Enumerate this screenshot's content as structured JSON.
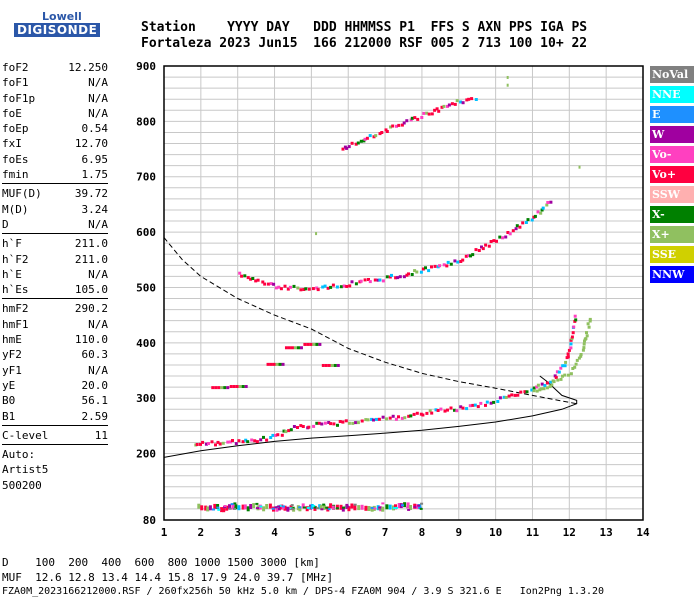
{
  "logo": {
    "line1": "Lowell",
    "line2": "DIGISONDE"
  },
  "header": {
    "labels": "Station    YYYY DAY   DDD HHMMSS P1  FFS S AXN PPS IGA PS",
    "values": "Fortaleza 2023 Jun15  166 212000 RSF 005 2 713 100 10+ 22"
  },
  "params": [
    {
      "k": "foF2",
      "v": "12.250"
    },
    {
      "k": "foF1",
      "v": "N/A"
    },
    {
      "k": "foF1p",
      "v": "N/A"
    },
    {
      "k": "foE",
      "v": "N/A"
    },
    {
      "k": "foEp",
      "v": "0.54"
    },
    {
      "k": "fxI",
      "v": "12.70"
    },
    {
      "k": "foEs",
      "v": "6.95"
    },
    {
      "k": "fmin",
      "v": "1.75"
    },
    {
      "sep": true
    },
    {
      "k": "MUF(D)",
      "v": "39.72"
    },
    {
      "k": "M(D)",
      "v": "3.24"
    },
    {
      "k": "D",
      "v": "N/A"
    },
    {
      "sep": true
    },
    {
      "k": "h`F",
      "v": "211.0"
    },
    {
      "k": "h`F2",
      "v": "211.0"
    },
    {
      "k": "h`E",
      "v": "N/A"
    },
    {
      "k": "h`Es",
      "v": "105.0"
    },
    {
      "sep": true
    },
    {
      "k": "hmF2",
      "v": "290.2"
    },
    {
      "k": "hmF1",
      "v": "N/A"
    },
    {
      "k": "hmE",
      "v": "110.0"
    },
    {
      "k": "yF2",
      "v": "60.3"
    },
    {
      "k": "yF1",
      "v": "N/A"
    },
    {
      "k": "yE",
      "v": "20.0"
    },
    {
      "k": "B0",
      "v": "56.1"
    },
    {
      "k": "B1",
      "v": "2.59"
    },
    {
      "sep": true
    },
    {
      "k": "C-level",
      "v": "11"
    },
    {
      "sep": true
    },
    {
      "k": "Auto:",
      "v": ""
    },
    {
      "k": "Artist5",
      "v": ""
    },
    {
      "k": "500200",
      "v": ""
    }
  ],
  "legend": [
    {
      "label": "NoVal",
      "bg": "#808080",
      "fg": "#ffffff"
    },
    {
      "label": "NNE",
      "bg": "#00ffff",
      "fg": "#ffffff"
    },
    {
      "label": "E",
      "bg": "#1e90ff",
      "fg": "#ffffff"
    },
    {
      "label": "W",
      "bg": "#a000a0",
      "fg": "#ffffff"
    },
    {
      "label": "Vo-",
      "bg": "#ff40c0",
      "fg": "#ffffff"
    },
    {
      "label": "Vo+",
      "bg": "#ff0040",
      "fg": "#ffffff"
    },
    {
      "label": "SSW",
      "bg": "#ffb0b0",
      "fg": "#ffffff"
    },
    {
      "label": "X-",
      "bg": "#008000",
      "fg": "#ffffff"
    },
    {
      "label": "X+",
      "bg": "#90c060",
      "fg": "#ffffff"
    },
    {
      "label": "SSE",
      "bg": "#d0d000",
      "fg": "#ffffff"
    },
    {
      "label": "NNW",
      "bg": "#0000ff",
      "fg": "#ffffff"
    }
  ],
  "bottom": {
    "line_d": "D    100  200  400  600  800 1000 1500 3000 [km]",
    "line_muf": "MUF  12.6 12.8 13.4 14.4 15.8 17.9 24.0 39.7 [MHz]",
    "footer": "FZA0M_2023166212000.RSF / 260fx256h 50 kHz 5.0 km / DPS-4 FZA0M 904 / 3.9 S 321.6 E   Ion2Png 1.3.20"
  },
  "chart_data": {
    "type": "scatter",
    "x_ticks": [
      1,
      2,
      3,
      4,
      5,
      6,
      7,
      8,
      9,
      10,
      11,
      12,
      13,
      14
    ],
    "y_ticks": [
      80,
      200,
      300,
      400,
      500,
      600,
      700,
      800,
      900
    ],
    "xlim": [
      1,
      14
    ],
    "ylim": [
      80,
      900
    ],
    "grid": true,
    "traces": [
      {
        "name": "Es",
        "color": "#ff0040",
        "points": [
          [
            1.9,
            103
          ],
          [
            2.5,
            103
          ],
          [
            3.0,
            102
          ],
          [
            3.5,
            104
          ],
          [
            4.0,
            103
          ],
          [
            4.5,
            104
          ],
          [
            5.0,
            102
          ],
          [
            5.5,
            103
          ],
          [
            6.0,
            104
          ],
          [
            6.5,
            103
          ],
          [
            7.0,
            104
          ],
          [
            7.5,
            105
          ],
          [
            8.0,
            104
          ]
        ]
      },
      {
        "name": "F2-o",
        "color": "#ff0040",
        "points": [
          [
            1.8,
            215
          ],
          [
            2.5,
            218
          ],
          [
            3.0,
            221
          ],
          [
            3.5,
            223
          ],
          [
            4.0,
            230
          ],
          [
            4.5,
            245
          ],
          [
            5.0,
            250
          ],
          [
            5.5,
            252
          ],
          [
            6.0,
            256
          ],
          [
            6.5,
            258
          ],
          [
            7.0,
            262
          ],
          [
            7.5,
            266
          ],
          [
            8.0,
            272
          ],
          [
            8.5,
            276
          ],
          [
            9.0,
            280
          ],
          [
            9.5,
            287
          ],
          [
            10.0,
            295
          ],
          [
            10.5,
            304
          ],
          [
            11.0,
            315
          ],
          [
            11.5,
            332
          ],
          [
            11.8,
            355
          ],
          [
            12.0,
            390
          ],
          [
            12.1,
            430
          ],
          [
            12.15,
            450
          ]
        ]
      },
      {
        "name": "F2-x",
        "color": "#90c060",
        "points": [
          [
            11.0,
            312
          ],
          [
            11.5,
            325
          ],
          [
            12.0,
            345
          ],
          [
            12.3,
            380
          ],
          [
            12.45,
            420
          ],
          [
            12.55,
            445
          ]
        ]
      },
      {
        "name": "2F2",
        "color": "#ff0040",
        "points": [
          [
            3.0,
            522
          ],
          [
            4.0,
            500
          ],
          [
            5.0,
            497
          ],
          [
            6.0,
            505
          ],
          [
            7.0,
            515
          ],
          [
            8.0,
            530
          ],
          [
            9.0,
            548
          ],
          [
            10.0,
            585
          ],
          [
            10.5,
            605
          ],
          [
            11.0,
            625
          ],
          [
            11.5,
            660
          ]
        ]
      },
      {
        "name": "3F2",
        "color": "#ff0040",
        "points": [
          [
            5.8,
            748
          ],
          [
            6.5,
            770
          ],
          [
            7.5,
            795
          ],
          [
            8.0,
            810
          ],
          [
            8.5,
            822
          ],
          [
            9.0,
            835
          ],
          [
            9.5,
            842
          ]
        ]
      },
      {
        "name": "misc",
        "color": "#ff0040",
        "points": [
          [
            2.5,
            320
          ],
          [
            3.0,
            322
          ],
          [
            4.5,
            392
          ],
          [
            5.0,
            398
          ],
          [
            4.0,
            362
          ],
          [
            5.5,
            360
          ]
        ]
      }
    ],
    "profile_solid": [
      [
        1,
        193
      ],
      [
        2,
        205
      ],
      [
        3,
        214
      ],
      [
        4,
        222
      ],
      [
        5,
        228
      ],
      [
        6,
        232
      ],
      [
        7,
        237
      ],
      [
        8,
        242
      ],
      [
        9,
        249
      ],
      [
        10,
        257
      ],
      [
        11,
        268
      ],
      [
        11.8,
        280
      ],
      [
        12.2,
        290
      ],
      [
        12.2,
        296
      ],
      [
        11.8,
        305
      ],
      [
        11.4,
        330
      ],
      [
        11.2,
        340
      ]
    ],
    "profile_dashed": [
      [
        1,
        590
      ],
      [
        1.5,
        550
      ],
      [
        2,
        520
      ],
      [
        3,
        480
      ],
      [
        4,
        450
      ],
      [
        5,
        425
      ],
      [
        6,
        390
      ],
      [
        7,
        365
      ],
      [
        8,
        345
      ],
      [
        9,
        330
      ],
      [
        10,
        318
      ],
      [
        11,
        305
      ],
      [
        11.8,
        295
      ],
      [
        12.2,
        290
      ]
    ],
    "stray_points": [
      [
        10.3,
        882
      ],
      [
        10.3,
        868
      ],
      [
        12.25,
        720
      ],
      [
        5.1,
        600
      ]
    ]
  }
}
